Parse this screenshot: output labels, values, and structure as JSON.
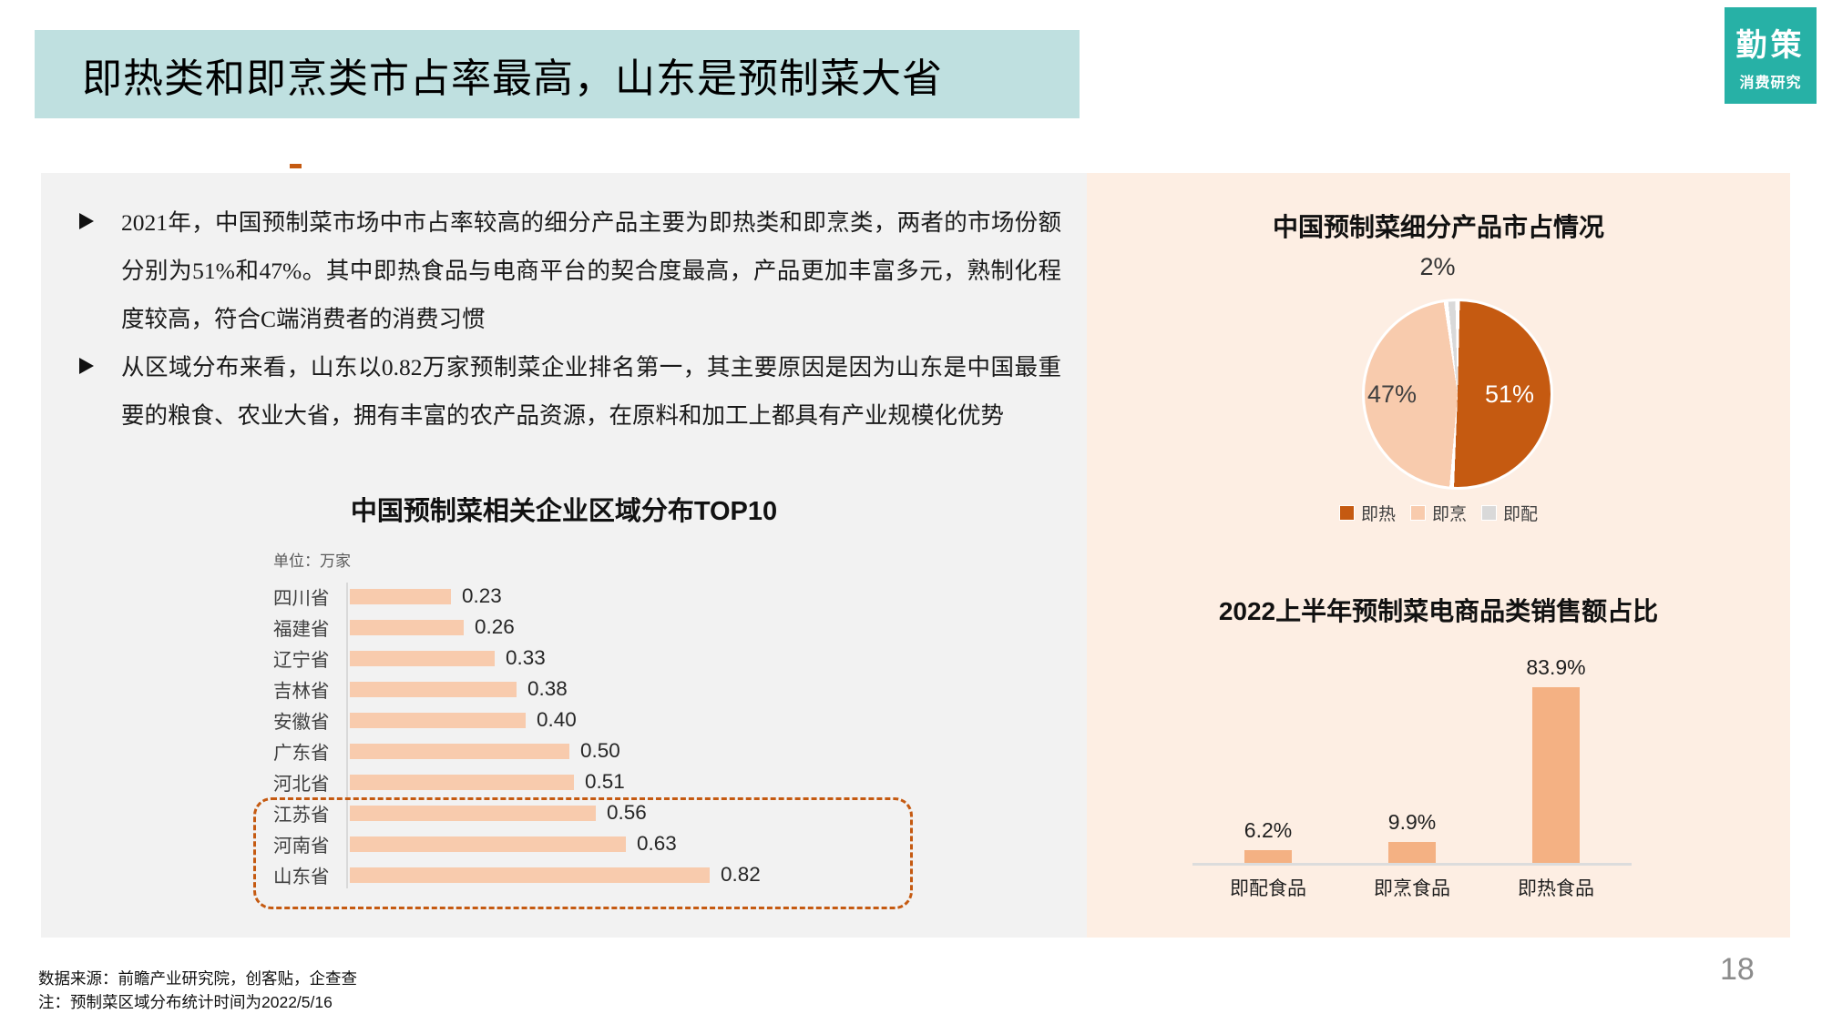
{
  "header": {
    "title": "即热类和即烹类市占率最高，山东是预制菜大省",
    "logo": {
      "name": "勤策",
      "sub": "消费研究"
    }
  },
  "bullets": [
    "2021年，中国预制菜市场中市占率较高的细分产品主要为即热类和即烹类，两者的市场份额分别为51%和47%。其中即热食品与电商平台的契合度最高，产品更加丰富多元，熟制化程度较高，符合C端消费者的消费习惯",
    "从区域分布来看，山东以0.82万家预制菜企业排名第一，其主要原因是因为山东是中国最重要的粮食、农业大省，拥有丰富的农产品资源，在原料和加工上都具有产业规模化优势"
  ],
  "colors": {
    "title_bar": "#bfe0e0",
    "logo_teal": "#27b1a6",
    "left_panel": "#f2f2f2",
    "right_panel": "#fdeee3",
    "accent_dark_orange": "#c55a11",
    "bar_light_peach": "#f8cbad",
    "bar_medium_orange": "#f4b183",
    "pie_gray": "#d9d9d9"
  },
  "chart_data": [
    {
      "id": "region-distribution-bar",
      "type": "bar",
      "orientation": "horizontal",
      "title": "中国预制菜相关企业区域分布TOP10",
      "unit_label": "单位：万家",
      "categories": [
        "四川省",
        "福建省",
        "辽宁省",
        "吉林省",
        "安徽省",
        "广东省",
        "河北省",
        "江苏省",
        "河南省",
        "山东省"
      ],
      "values": [
        0.23,
        0.26,
        0.33,
        0.38,
        0.4,
        0.5,
        0.51,
        0.56,
        0.63,
        0.82
      ],
      "value_labels": [
        "0.23",
        "0.26",
        "0.33",
        "0.38",
        "0.40",
        "0.50",
        "0.51",
        "0.56",
        "0.63",
        "0.82"
      ],
      "bar_color": "#f8cbad",
      "grid": false,
      "highlight": {
        "categories": [
          "江苏省",
          "河南省",
          "山东省"
        ],
        "style": "dashed-orange-rounded-box"
      }
    },
    {
      "id": "product-share-pie",
      "type": "pie",
      "title": "中国预制菜细分产品市占情况",
      "slices": [
        {
          "label": "即热",
          "value": 51,
          "display": "51%",
          "color": "#c55a11"
        },
        {
          "label": "即烹",
          "value": 47,
          "display": "47%",
          "color": "#f8cbad"
        },
        {
          "label": "即配",
          "value": 2,
          "display": "2%",
          "color": "#d9d9d9"
        }
      ],
      "start_angle_deg": 0,
      "direction": "clockwise",
      "legend_position": "bottom"
    },
    {
      "id": "ecommerce-sales-share-bar",
      "type": "bar",
      "orientation": "vertical",
      "title": "2022上半年预制菜电商品类销售额占比",
      "categories": [
        "即配食品",
        "即烹食品",
        "即热食品"
      ],
      "values": [
        6.2,
        9.9,
        83.9
      ],
      "value_labels": [
        "6.2%",
        "9.9%",
        "83.9%"
      ],
      "bar_color": "#f4b183",
      "grid": false,
      "ylim": [
        0,
        100
      ]
    }
  ],
  "footer": {
    "source": "数据来源：前瞻产业研究院，创客贴，企查查",
    "note": "注：预制菜区域分布统计时间为2022/5/16",
    "page_number": "18"
  }
}
